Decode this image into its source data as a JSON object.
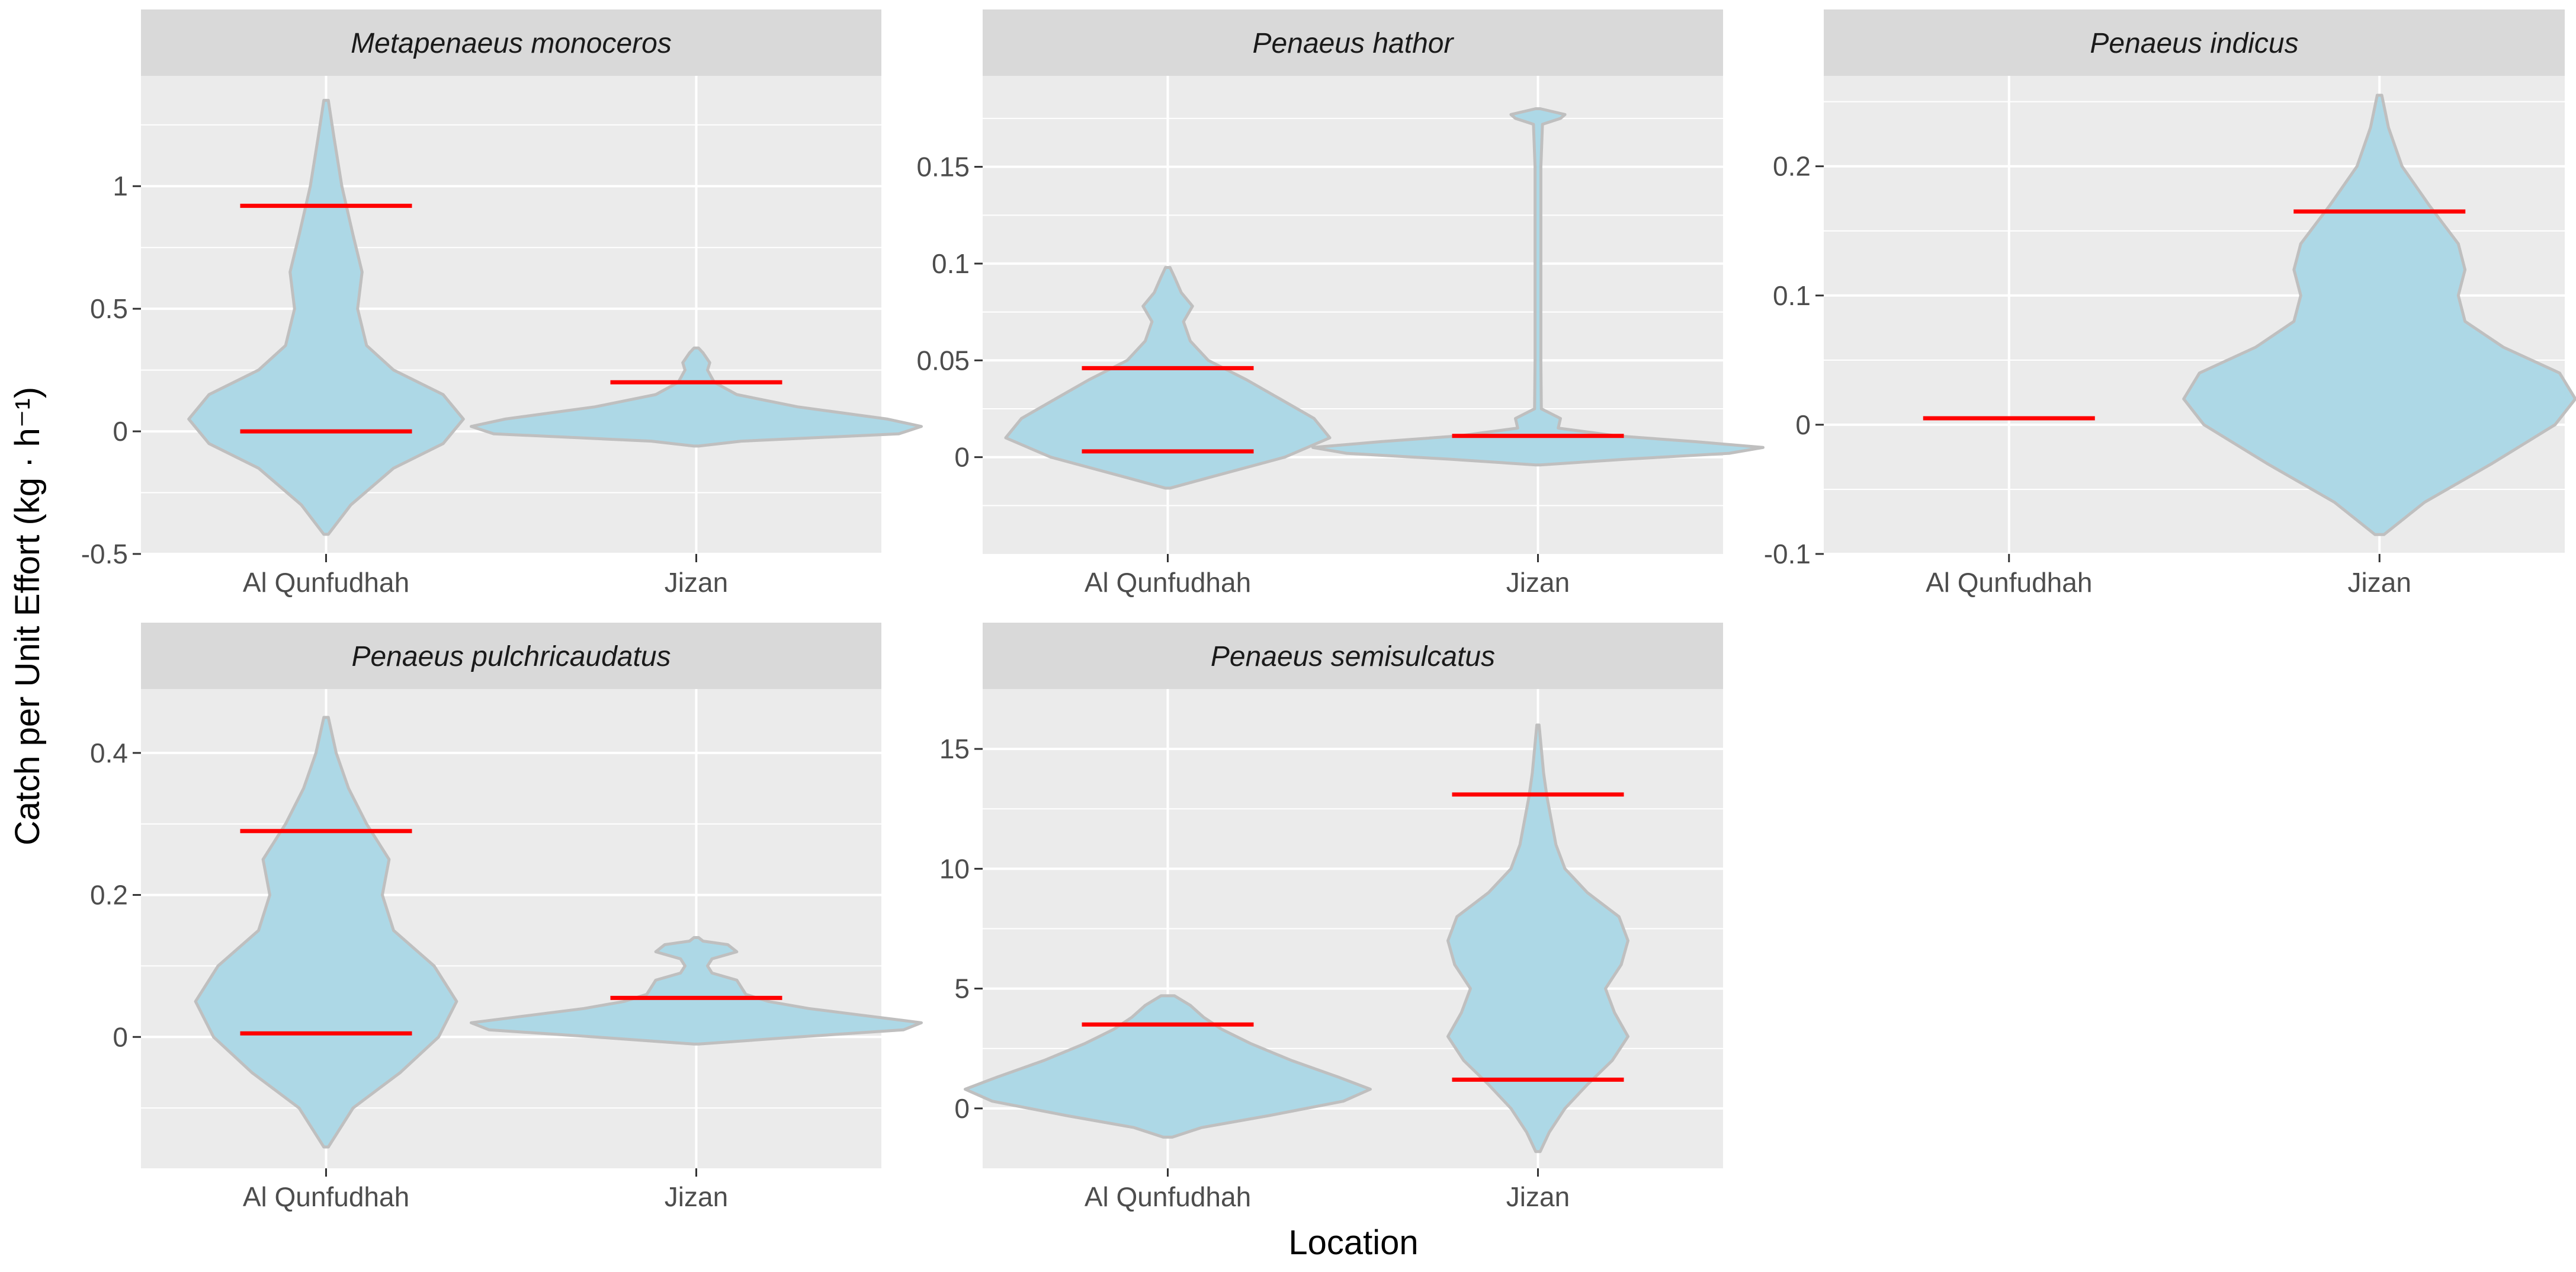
{
  "chart_data": {
    "type": "violin",
    "xlabel": "Location",
    "ylabel": "Catch per Unit Effort (kg · h⁻¹)",
    "categories": [
      "Al Qunfudhah",
      "Jizan"
    ],
    "colors": {
      "panel_bg": "#ebebeb",
      "strip_bg": "#d9d9d9",
      "grid": "#ffffff",
      "violin_fill": "#add8e6",
      "violin_outline": "#bfbfbf",
      "marker": "#ff0000"
    },
    "panels": [
      {
        "title": "Metapenaeus monoceros",
        "ylim": [
          -0.5,
          1.45
        ],
        "yticks": [
          -0.5,
          0,
          0.5,
          1
        ],
        "ytick_labels": [
          "-0.5",
          "0",
          "0.5",
          "1"
        ],
        "violins": [
          {
            "category": "Al Qunfudhah",
            "profile": [
              [
                -0.42,
                0.01
              ],
              [
                -0.3,
                0.11
              ],
              [
                -0.15,
                0.3
              ],
              [
                -0.05,
                0.52
              ],
              [
                0.05,
                0.61
              ],
              [
                0.15,
                0.52
              ],
              [
                0.25,
                0.3
              ],
              [
                0.35,
                0.18
              ],
              [
                0.5,
                0.14
              ],
              [
                0.65,
                0.16
              ],
              [
                0.8,
                0.12
              ],
              [
                1.0,
                0.07
              ],
              [
                1.2,
                0.035
              ],
              [
                1.35,
                0.01
              ]
            ],
            "markers": [
              0.92,
              0.0
            ]
          },
          {
            "category": "Jizan",
            "profile": [
              [
                -0.06,
                0.01
              ],
              [
                -0.04,
                0.2
              ],
              [
                -0.01,
                0.9
              ],
              [
                0.02,
                1.0
              ],
              [
                0.05,
                0.85
              ],
              [
                0.1,
                0.45
              ],
              [
                0.15,
                0.18
              ],
              [
                0.2,
                0.08
              ],
              [
                0.25,
                0.05
              ],
              [
                0.28,
                0.06
              ],
              [
                0.32,
                0.03
              ],
              [
                0.34,
                0.01
              ]
            ],
            "markers": [
              0.2
            ]
          }
        ]
      },
      {
        "title": "Penaeus hathor",
        "ylim": [
          -0.05,
          0.197
        ],
        "yticks": [
          0,
          0.05,
          0.1,
          0.15
        ],
        "ytick_labels": [
          "0",
          "0.05",
          "0.1",
          "0.15"
        ],
        "violins": [
          {
            "category": "Al Qunfudhah",
            "profile": [
              [
                -0.016,
                0.01
              ],
              [
                -0.01,
                0.2
              ],
              [
                0,
                0.52
              ],
              [
                0.01,
                0.72
              ],
              [
                0.02,
                0.65
              ],
              [
                0.03,
                0.5
              ],
              [
                0.04,
                0.35
              ],
              [
                0.05,
                0.18
              ],
              [
                0.06,
                0.1
              ],
              [
                0.07,
                0.07
              ],
              [
                0.078,
                0.11
              ],
              [
                0.085,
                0.06
              ],
              [
                0.093,
                0.03
              ],
              [
                0.098,
                0.01
              ]
            ],
            "markers": [
              0.046,
              0.003
            ]
          },
          {
            "category": "Jizan",
            "profile": [
              [
                -0.004,
                0.01
              ],
              [
                -0.001,
                0.4
              ],
              [
                0.002,
                0.85
              ],
              [
                0.005,
                1.0
              ],
              [
                0.008,
                0.7
              ],
              [
                0.011,
                0.35
              ],
              [
                0.015,
                0.09
              ],
              [
                0.02,
                0.1
              ],
              [
                0.025,
                0.015
              ],
              [
                0.05,
                0.013
              ],
              [
                0.1,
                0.013
              ],
              [
                0.15,
                0.013
              ],
              [
                0.172,
                0.02
              ],
              [
                0.175,
                0.1
              ],
              [
                0.177,
                0.12
              ],
              [
                0.18,
                0.01
              ]
            ],
            "markers": [
              0.011
            ]
          }
        ]
      },
      {
        "title": "Penaeus indicus",
        "ylim": [
          -0.1,
          0.27
        ],
        "yticks": [
          -0.1,
          0,
          0.1,
          0.2
        ],
        "ytick_labels": [
          "-0.1",
          "0",
          "0.1",
          "0.2"
        ],
        "violins": [
          {
            "category": "Al Qunfudhah",
            "profile": [],
            "markers": [
              0.005
            ]
          },
          {
            "category": "Jizan",
            "profile": [
              [
                -0.085,
                0.02
              ],
              [
                -0.06,
                0.2
              ],
              [
                -0.03,
                0.5
              ],
              [
                0,
                0.78
              ],
              [
                0.02,
                0.87
              ],
              [
                0.04,
                0.8
              ],
              [
                0.06,
                0.55
              ],
              [
                0.08,
                0.38
              ],
              [
                0.1,
                0.35
              ],
              [
                0.12,
                0.38
              ],
              [
                0.14,
                0.35
              ],
              [
                0.17,
                0.22
              ],
              [
                0.2,
                0.1
              ],
              [
                0.23,
                0.04
              ],
              [
                0.255,
                0.01
              ]
            ],
            "markers": [
              0.165
            ]
          }
        ]
      },
      {
        "title": "Penaeus pulchricaudatus",
        "ylim": [
          -0.185,
          0.49
        ],
        "yticks": [
          0,
          0.2,
          0.4
        ],
        "ytick_labels": [
          "0",
          "0.2",
          "0.4"
        ],
        "violins": [
          {
            "category": "Al Qunfudhah",
            "profile": [
              [
                -0.155,
                0.01
              ],
              [
                -0.1,
                0.12
              ],
              [
                -0.05,
                0.33
              ],
              [
                0,
                0.5
              ],
              [
                0.05,
                0.58
              ],
              [
                0.1,
                0.48
              ],
              [
                0.15,
                0.3
              ],
              [
                0.2,
                0.25
              ],
              [
                0.25,
                0.28
              ],
              [
                0.3,
                0.18
              ],
              [
                0.35,
                0.1
              ],
              [
                0.4,
                0.045
              ],
              [
                0.45,
                0.01
              ]
            ],
            "markers": [
              0.29,
              0.005
            ]
          },
          {
            "category": "Jizan",
            "profile": [
              [
                -0.01,
                0.01
              ],
              [
                0,
                0.45
              ],
              [
                0.01,
                0.92
              ],
              [
                0.02,
                1.0
              ],
              [
                0.03,
                0.75
              ],
              [
                0.04,
                0.5
              ],
              [
                0.05,
                0.32
              ],
              [
                0.06,
                0.22
              ],
              [
                0.07,
                0.2
              ],
              [
                0.08,
                0.18
              ],
              [
                0.09,
                0.07
              ],
              [
                0.1,
                0.05
              ],
              [
                0.11,
                0.07
              ],
              [
                0.12,
                0.18
              ],
              [
                0.13,
                0.14
              ],
              [
                0.135,
                0.03
              ],
              [
                0.14,
                0.01
              ]
            ],
            "markers": [
              0.055
            ]
          }
        ]
      },
      {
        "title": "Penaeus semisulcatus",
        "ylim": [
          -2.5,
          17.5
        ],
        "yticks": [
          0,
          5,
          10,
          15
        ],
        "ytick_labels": [
          "0",
          "5",
          "10",
          "15"
        ],
        "violins": [
          {
            "category": "Al Qunfudhah",
            "profile": [
              [
                -1.2,
                0.02
              ],
              [
                -0.8,
                0.15
              ],
              [
                -0.3,
                0.45
              ],
              [
                0.3,
                0.78
              ],
              [
                0.8,
                0.9
              ],
              [
                1.3,
                0.76
              ],
              [
                2.0,
                0.55
              ],
              [
                2.7,
                0.37
              ],
              [
                3.3,
                0.24
              ],
              [
                3.8,
                0.16
              ],
              [
                4.3,
                0.1
              ],
              [
                4.7,
                0.03
              ]
            ],
            "markers": [
              3.5
            ]
          },
          {
            "category": "Jizan",
            "profile": [
              [
                -1.8,
                0.01
              ],
              [
                -1.0,
                0.05
              ],
              [
                0,
                0.12
              ],
              [
                1,
                0.22
              ],
              [
                2,
                0.33
              ],
              [
                3,
                0.4
              ],
              [
                4,
                0.34
              ],
              [
                5,
                0.3
              ],
              [
                6,
                0.37
              ],
              [
                7,
                0.4
              ],
              [
                8,
                0.36
              ],
              [
                9,
                0.22
              ],
              [
                10,
                0.12
              ],
              [
                11,
                0.08
              ],
              [
                12,
                0.06
              ],
              [
                13,
                0.04
              ],
              [
                14,
                0.025
              ],
              [
                15,
                0.015
              ],
              [
                16,
                0.005
              ]
            ],
            "markers": [
              13.1,
              1.2
            ]
          }
        ]
      }
    ]
  }
}
